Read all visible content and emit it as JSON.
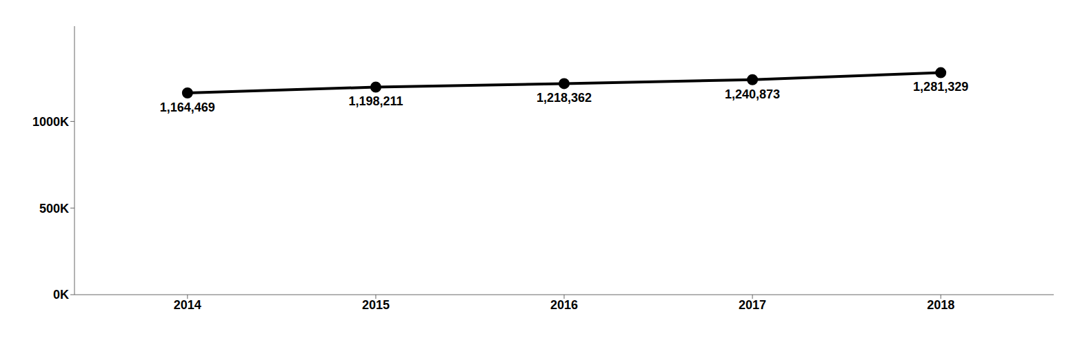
{
  "chart_data": {
    "type": "line",
    "x": [
      2014,
      2015,
      2016,
      2017,
      2018
    ],
    "values": [
      1164469,
      1198211,
      1218362,
      1240873,
      1281329
    ],
    "value_labels": [
      "1,164,469",
      "1,198,211",
      "1,218,362",
      "1,240,873",
      "1,281,329"
    ],
    "color": "#000000",
    "xlim": [
      2013.4,
      2018.6
    ],
    "xticks": [
      2014,
      2015,
      2016,
      2017,
      2018
    ],
    "ylim": [
      0,
      1550000
    ],
    "yticks": [
      {
        "value": 0,
        "label": "0K"
      },
      {
        "value": 500000,
        "label": "500K"
      },
      {
        "value": 1000000,
        "label": "1000K"
      }
    ],
    "data_labels": true,
    "grid": false,
    "marker": "circle"
  }
}
